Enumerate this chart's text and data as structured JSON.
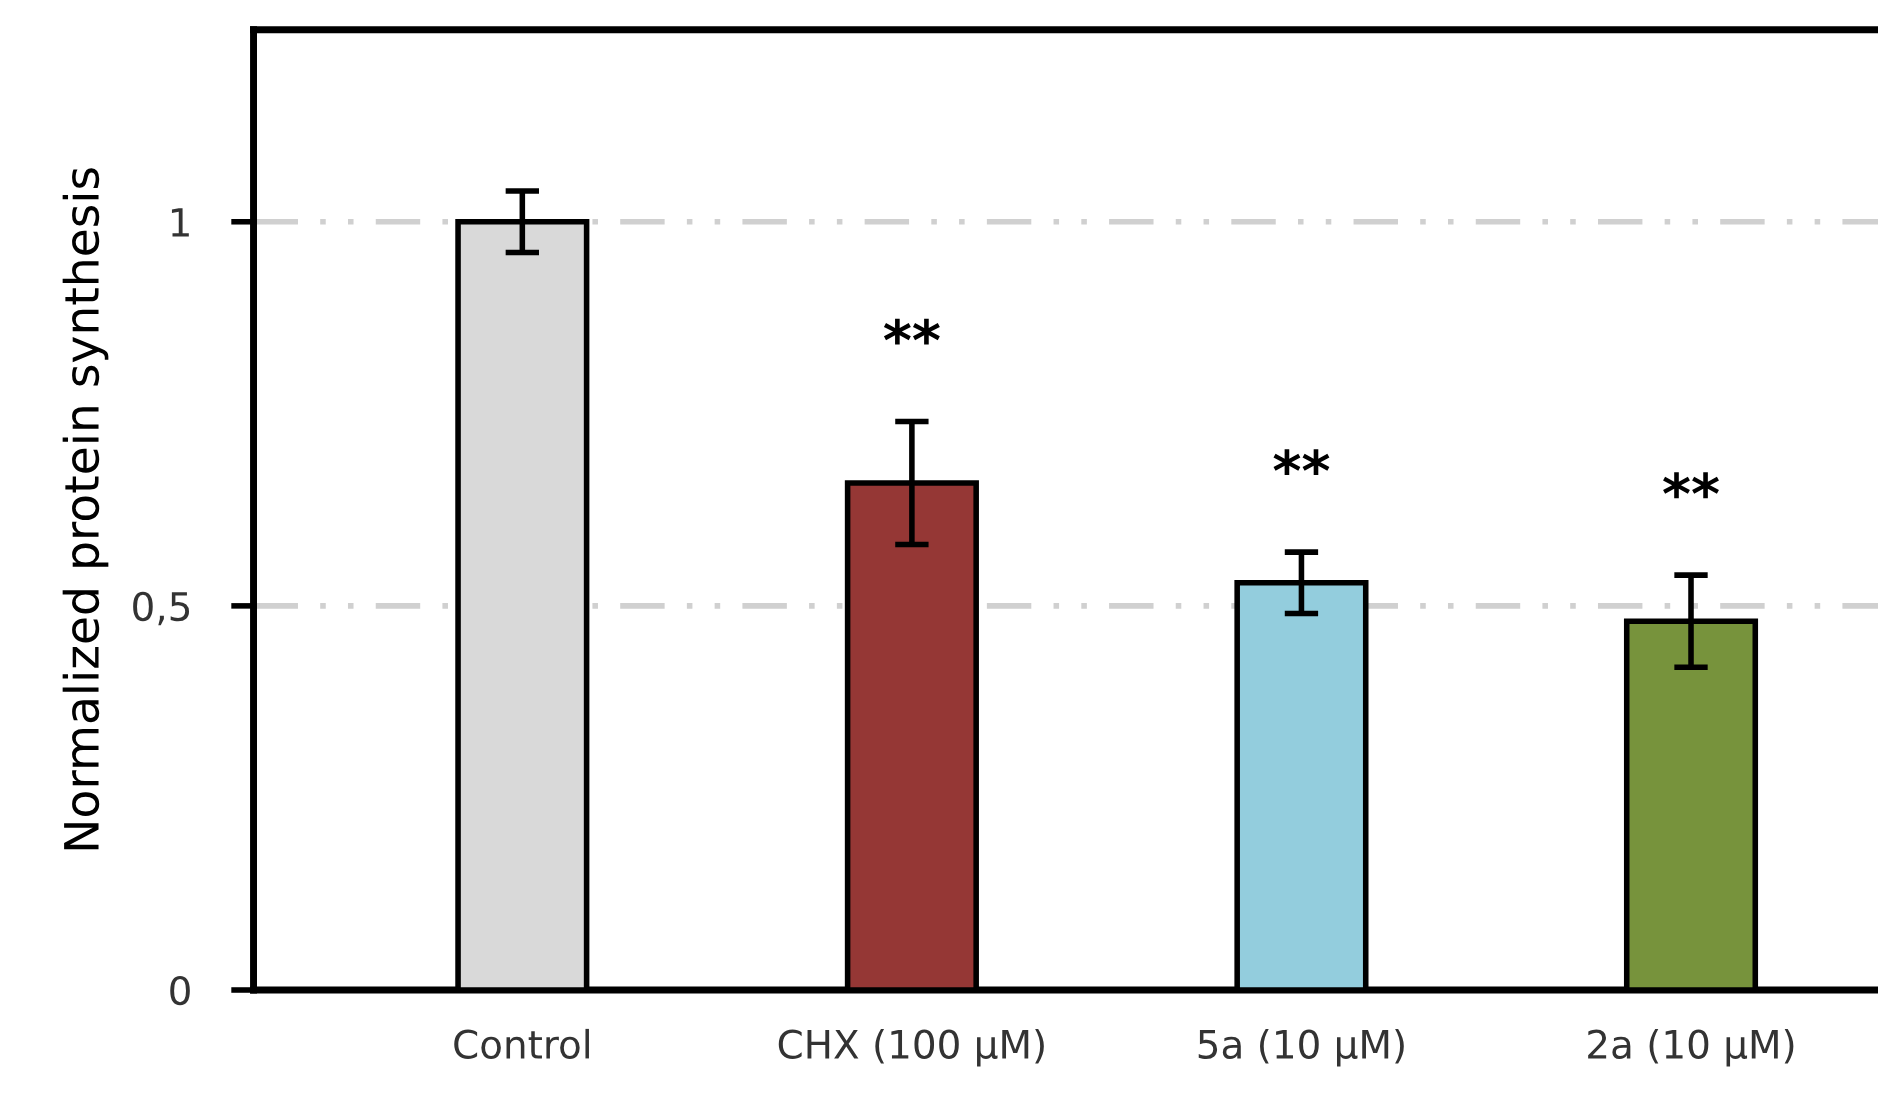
{
  "chart_data": {
    "type": "bar",
    "ylabel": "Normalized protein synthesis",
    "categories": [
      "Control",
      "CHX (100 µM)",
      "5a (10 µM)",
      "2a (10 µM)"
    ],
    "values": [
      1.0,
      0.66,
      0.53,
      0.48
    ],
    "errors": [
      0.04,
      0.08,
      0.04,
      0.06
    ],
    "colors": [
      "#d9d9d9",
      "#953735",
      "#93cddd",
      "#77933c"
    ],
    "ylim": [
      0,
      1.25
    ],
    "yticks": [
      0,
      {
        "value": 0.5,
        "label": "0,5"
      },
      1
    ],
    "grid": "y",
    "annotations": [
      "**",
      "**",
      "**"
    ]
  }
}
